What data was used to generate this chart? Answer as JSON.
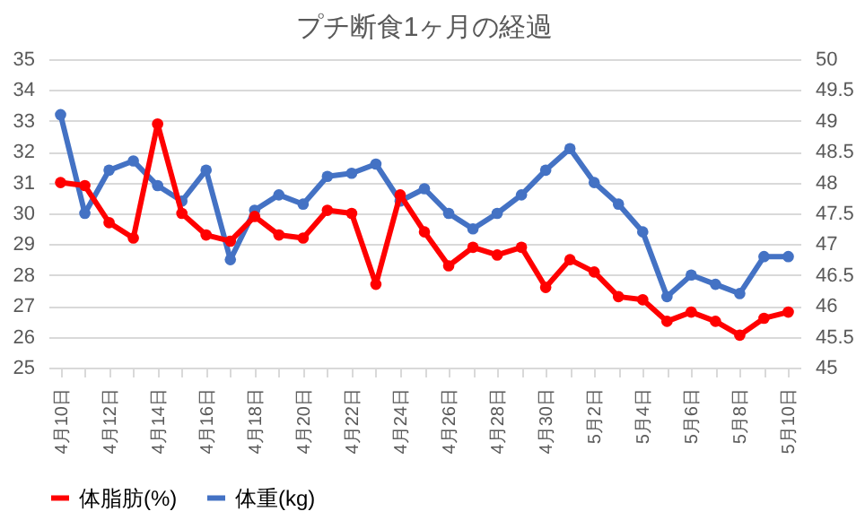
{
  "chart_data": {
    "type": "line",
    "title": "プチ断食1ヶ月の経過",
    "categories": [
      "4月10日",
      null,
      "4月12日",
      null,
      "4月14日",
      null,
      "4月16日",
      null,
      "4月18日",
      null,
      "4月20日",
      null,
      "4月22日",
      null,
      "4月24日",
      null,
      "4月26日",
      null,
      "4月28日",
      null,
      "4月30日",
      null,
      "5月2日",
      null,
      "5月4日",
      null,
      "5月6日",
      null,
      "5月8日",
      null,
      "5月10日"
    ],
    "series": [
      {
        "name": "体脂肪(%)",
        "color": "#ff0000",
        "values": [
          31.0,
          30.9,
          29.7,
          29.2,
          32.9,
          30.0,
          29.3,
          29.1,
          29.9,
          29.3,
          29.2,
          30.1,
          30.0,
          27.7,
          30.6,
          29.4,
          28.3,
          28.9,
          28.65,
          28.9,
          27.6,
          28.5,
          28.1,
          27.3,
          27.2,
          26.5,
          26.8,
          26.5,
          26.05,
          26.6,
          26.8
        ]
      },
      {
        "name": "体重(kg)",
        "color": "#4472c4",
        "axis": "y2",
        "values": [
          49.1,
          47.5,
          48.2,
          48.35,
          47.95,
          47.7,
          48.2,
          46.75,
          47.55,
          47.8,
          47.65,
          48.1,
          48.15,
          48.3,
          47.7,
          47.9,
          47.5,
          47.25,
          47.5,
          47.8,
          48.2,
          48.55,
          48.0,
          47.65,
          47.2,
          46.15,
          46.5,
          46.35,
          46.2,
          46.8,
          46.8
        ]
      }
    ],
    "ylim": [
      25,
      35
    ],
    "yticks": [
      25,
      26,
      27,
      28,
      29,
      30,
      31,
      32,
      33,
      34,
      35
    ],
    "y2lim": [
      45,
      50
    ],
    "y2ticks": [
      45,
      45.5,
      46,
      46.5,
      47,
      47.5,
      48,
      48.5,
      49,
      49.5,
      50
    ],
    "grid": "y",
    "legend": "bottom",
    "marker": "circle",
    "line_style": "solid"
  }
}
